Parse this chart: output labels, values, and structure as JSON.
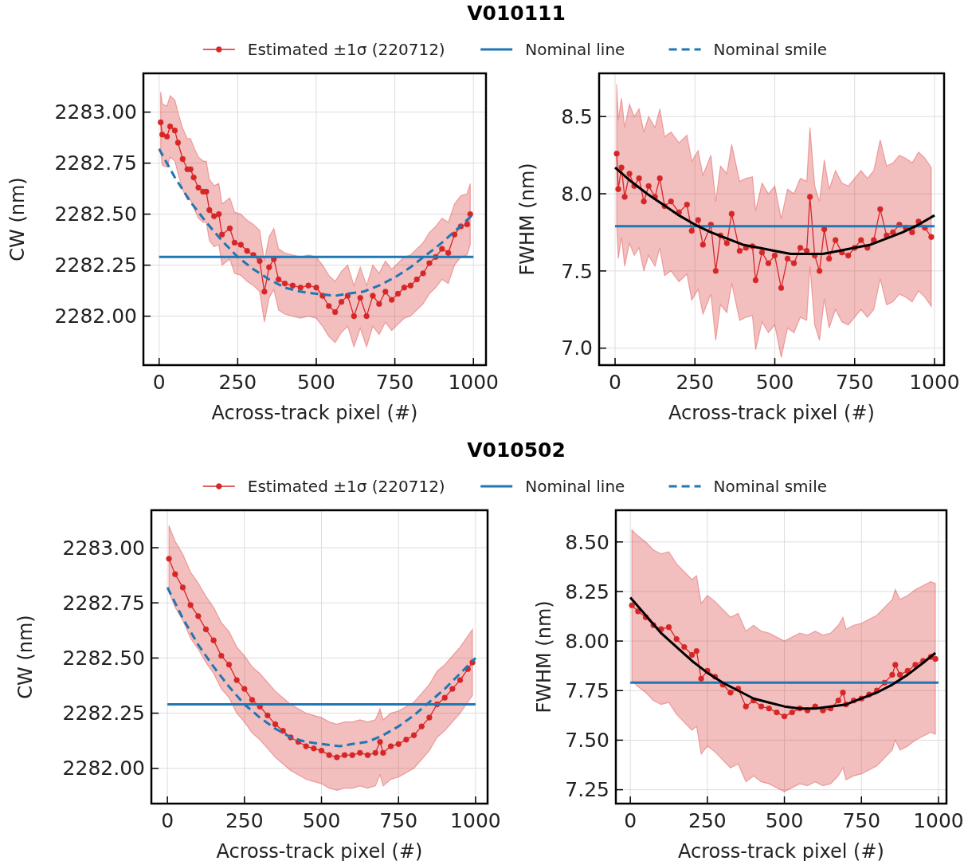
{
  "chart_data": [
    {
      "type": "line",
      "title": "V010111",
      "legend": "top",
      "grid": true,
      "xlabel": "Across-track pixel (#)",
      "ylabel": "CW (nm)",
      "xlim": [
        -50,
        1040
      ],
      "xticks": [
        0,
        250,
        500,
        750,
        1000
      ],
      "ylim": [
        2281.76,
        2283.19
      ],
      "yticks": [
        {
          "value": 2282,
          "label": "2282.00"
        },
        {
          "value": 2282.25,
          "label": "2282.25"
        },
        {
          "value": 2282.5,
          "label": "2282.50"
        },
        {
          "value": 2282.75,
          "label": "2282.75"
        },
        {
          "value": 2283,
          "label": "2283.00"
        }
      ],
      "series": [
        {
          "name": "Estimated ±1σ (220712)",
          "color": "#d62728",
          "marker": "circle",
          "x": [
            5,
            10,
            25,
            35,
            50,
            60,
            75,
            90,
            100,
            110,
            125,
            140,
            150,
            160,
            175,
            190,
            200,
            225,
            240,
            260,
            280,
            300,
            320,
            335,
            350,
            365,
            380,
            400,
            425,
            450,
            475,
            500,
            520,
            540,
            560,
            580,
            600,
            620,
            640,
            660,
            680,
            700,
            720,
            740,
            760,
            780,
            800,
            820,
            840,
            860,
            880,
            900,
            920,
            940,
            960,
            980,
            990
          ],
          "values": [
            2282.95,
            2282.89,
            2282.88,
            2282.93,
            2282.91,
            2282.85,
            2282.77,
            2282.72,
            2282.72,
            2282.68,
            2282.63,
            2282.61,
            2282.61,
            2282.52,
            2282.49,
            2282.5,
            2282.4,
            2282.43,
            2282.36,
            2282.35,
            2282.32,
            2282.3,
            2282.27,
            2282.12,
            2282.24,
            2282.28,
            2282.18,
            2282.16,
            2282.15,
            2282.14,
            2282.15,
            2282.14,
            2282.1,
            2282.05,
            2282.02,
            2282.07,
            2282.1,
            2282.0,
            2282.09,
            2282.0,
            2282.1,
            2282.06,
            2282.12,
            2282.08,
            2282.11,
            2282.14,
            2282.15,
            2282.18,
            2282.21,
            2282.26,
            2282.29,
            2282.33,
            2282.31,
            2282.4,
            2282.44,
            2282.45,
            2282.5
          ],
          "upper": [
            2283.1,
            2283.04,
            2283.03,
            2283.08,
            2283.06,
            2283.0,
            2282.92,
            2282.87,
            2282.87,
            2282.83,
            2282.78,
            2282.76,
            2282.76,
            2282.67,
            2282.64,
            2282.65,
            2282.55,
            2282.58,
            2282.51,
            2282.5,
            2282.47,
            2282.45,
            2282.42,
            2282.27,
            2282.39,
            2282.43,
            2282.33,
            2282.31,
            2282.3,
            2282.29,
            2282.3,
            2282.29,
            2282.25,
            2282.2,
            2282.17,
            2282.22,
            2282.25,
            2282.15,
            2282.24,
            2282.15,
            2282.25,
            2282.21,
            2282.27,
            2282.23,
            2282.26,
            2282.29,
            2282.3,
            2282.33,
            2282.36,
            2282.41,
            2282.44,
            2282.48,
            2282.46,
            2282.55,
            2282.59,
            2282.6,
            2282.65
          ],
          "lower": [
            2282.8,
            2282.74,
            2282.73,
            2282.78,
            2282.76,
            2282.7,
            2282.62,
            2282.57,
            2282.57,
            2282.53,
            2282.48,
            2282.46,
            2282.46,
            2282.37,
            2282.34,
            2282.35,
            2282.25,
            2282.28,
            2282.21,
            2282.2,
            2282.17,
            2282.15,
            2282.12,
            2281.97,
            2282.09,
            2282.13,
            2282.03,
            2282.01,
            2282.0,
            2281.99,
            2282.0,
            2281.99,
            2281.95,
            2281.9,
            2281.87,
            2281.92,
            2281.95,
            2281.85,
            2281.94,
            2281.85,
            2281.95,
            2281.91,
            2281.97,
            2281.93,
            2281.96,
            2281.99,
            2282.0,
            2282.03,
            2282.06,
            2282.11,
            2282.14,
            2282.18,
            2282.16,
            2282.25,
            2282.29,
            2282.3,
            2282.35
          ]
        },
        {
          "name": "Nominal line",
          "color": "#1f77b4",
          "x": [
            0,
            1000
          ],
          "values": [
            2282.29,
            2282.29
          ]
        },
        {
          "name": "Nominal smile",
          "color": "#1f77b4",
          "line_style": "dashed",
          "x": [
            0,
            50,
            100,
            150,
            200,
            250,
            300,
            350,
            400,
            450,
            500,
            560,
            600,
            650,
            700,
            750,
            800,
            850,
            900,
            950,
            1000
          ],
          "values": [
            2282.82,
            2282.68,
            2282.56,
            2282.46,
            2282.37,
            2282.29,
            2282.23,
            2282.18,
            2282.14,
            2282.12,
            2282.11,
            2282.1,
            2282.11,
            2282.12,
            2282.15,
            2282.19,
            2282.24,
            2282.3,
            2282.36,
            2282.43,
            2282.5
          ]
        }
      ]
    },
    {
      "type": "line",
      "grid": true,
      "xlabel": "Across-track pixel (#)",
      "ylabel": "FWHM (nm)",
      "xlim": [
        -50,
        1030
      ],
      "xticks": [
        0,
        250,
        500,
        750,
        1000
      ],
      "ylim": [
        6.89,
        8.78
      ],
      "yticks": [
        {
          "value": 7,
          "label": "7.0"
        },
        7.5,
        {
          "value": 8,
          "label": "8.0"
        },
        8.5
      ],
      "series": [
        {
          "color": "#d62728",
          "marker": "circle",
          "x": [
            5,
            10,
            20,
            30,
            45,
            60,
            75,
            90,
            105,
            125,
            140,
            155,
            175,
            200,
            225,
            240,
            260,
            275,
            300,
            315,
            330,
            350,
            365,
            390,
            410,
            430,
            440,
            460,
            480,
            500,
            520,
            540,
            560,
            580,
            600,
            610,
            625,
            640,
            655,
            670,
            690,
            710,
            730,
            750,
            770,
            790,
            810,
            830,
            850,
            870,
            890,
            910,
            930,
            950,
            970,
            990
          ],
          "values": [
            8.26,
            8.03,
            8.17,
            7.98,
            8.13,
            8.05,
            8.1,
            7.95,
            8.05,
            7.98,
            8.1,
            7.92,
            7.95,
            7.88,
            7.93,
            7.76,
            7.83,
            7.67,
            7.8,
            7.5,
            7.73,
            7.68,
            7.87,
            7.63,
            7.65,
            7.66,
            7.44,
            7.62,
            7.55,
            7.6,
            7.39,
            7.58,
            7.55,
            7.65,
            7.63,
            7.98,
            7.6,
            7.5,
            7.77,
            7.58,
            7.7,
            7.62,
            7.6,
            7.65,
            7.7,
            7.65,
            7.7,
            7.9,
            7.73,
            7.75,
            7.8,
            7.78,
            7.75,
            7.82,
            7.78,
            7.72
          ],
          "upper": [
            8.71,
            8.48,
            8.62,
            8.43,
            8.58,
            8.5,
            8.55,
            8.4,
            8.5,
            8.43,
            8.55,
            8.37,
            8.4,
            8.33,
            8.38,
            8.21,
            8.28,
            8.12,
            8.25,
            7.95,
            8.18,
            8.13,
            8.32,
            8.08,
            8.1,
            8.11,
            7.89,
            8.07,
            8.0,
            8.05,
            7.84,
            8.03,
            8.0,
            8.1,
            8.08,
            8.43,
            8.05,
            7.95,
            8.22,
            8.03,
            8.15,
            8.07,
            8.05,
            8.1,
            8.15,
            8.1,
            8.15,
            8.35,
            8.18,
            8.2,
            8.25,
            8.23,
            8.2,
            8.27,
            8.23,
            8.17
          ],
          "lower": [
            7.81,
            7.58,
            7.72,
            7.53,
            7.68,
            7.6,
            7.65,
            7.5,
            7.6,
            7.53,
            7.65,
            7.47,
            7.5,
            7.43,
            7.48,
            7.31,
            7.38,
            7.22,
            7.35,
            7.05,
            7.28,
            7.23,
            7.42,
            7.18,
            7.2,
            7.21,
            6.99,
            7.17,
            7.1,
            7.15,
            6.94,
            7.13,
            7.1,
            7.2,
            7.18,
            7.53,
            7.15,
            7.05,
            7.32,
            7.13,
            7.25,
            7.17,
            7.15,
            7.2,
            7.25,
            7.2,
            7.25,
            7.45,
            7.28,
            7.3,
            7.35,
            7.33,
            7.3,
            7.37,
            7.33,
            7.27
          ]
        },
        {
          "color": "#1f77b4",
          "x": [
            0,
            1000
          ],
          "values": [
            7.79,
            7.79
          ]
        },
        {
          "color": "#000000",
          "x": [
            0,
            50,
            100,
            150,
            200,
            250,
            300,
            350,
            400,
            450,
            500,
            550,
            600,
            650,
            700,
            750,
            800,
            850,
            900,
            950,
            1000
          ],
          "values": [
            8.17,
            8.08,
            8.0,
            7.93,
            7.86,
            7.8,
            7.75,
            7.71,
            7.67,
            7.65,
            7.63,
            7.61,
            7.61,
            7.61,
            7.63,
            7.65,
            7.67,
            7.71,
            7.75,
            7.8,
            7.86
          ]
        }
      ]
    },
    {
      "type": "line",
      "title": "V010502",
      "legend": "top",
      "grid": true,
      "xlabel": "Across-track pixel (#)",
      "ylabel": "CW (nm)",
      "xlim": [
        -52,
        1039
      ],
      "xticks": [
        0,
        250,
        500,
        750,
        1000
      ],
      "ylim": [
        2281.84,
        2283.17
      ],
      "yticks": [
        {
          "value": 2282,
          "label": "2282.00"
        },
        {
          "value": 2282.25,
          "label": "2282.25"
        },
        {
          "value": 2282.5,
          "label": "2282.50"
        },
        {
          "value": 2282.75,
          "label": "2282.75"
        },
        {
          "value": 2283,
          "label": "2283.00"
        }
      ],
      "series": [
        {
          "name": "Estimated ±1σ (220712)",
          "color": "#d62728",
          "marker": "circle",
          "x": [
            5,
            25,
            50,
            75,
            100,
            125,
            150,
            175,
            200,
            225,
            250,
            275,
            300,
            325,
            350,
            375,
            400,
            425,
            450,
            475,
            500,
            525,
            550,
            575,
            600,
            625,
            650,
            675,
            690,
            700,
            725,
            750,
            775,
            800,
            825,
            850,
            875,
            900,
            925,
            950,
            975,
            990
          ],
          "values": [
            2282.95,
            2282.88,
            2282.82,
            2282.74,
            2282.69,
            2282.63,
            2282.58,
            2282.51,
            2282.47,
            2282.4,
            2282.36,
            2282.31,
            2282.28,
            2282.24,
            2282.2,
            2282.17,
            2282.14,
            2282.12,
            2282.1,
            2282.09,
            2282.08,
            2282.06,
            2282.05,
            2282.06,
            2282.06,
            2282.07,
            2282.06,
            2282.07,
            2282.12,
            2282.07,
            2282.1,
            2282.11,
            2282.13,
            2282.15,
            2282.19,
            2282.23,
            2282.29,
            2282.32,
            2282.36,
            2282.4,
            2282.45,
            2282.48
          ],
          "upper": [
            2283.1,
            2283.03,
            2282.97,
            2282.89,
            2282.84,
            2282.78,
            2282.73,
            2282.66,
            2282.62,
            2282.55,
            2282.51,
            2282.46,
            2282.43,
            2282.39,
            2282.35,
            2282.32,
            2282.29,
            2282.27,
            2282.25,
            2282.24,
            2282.23,
            2282.21,
            2282.2,
            2282.21,
            2282.21,
            2282.22,
            2282.21,
            2282.22,
            2282.27,
            2282.22,
            2282.25,
            2282.26,
            2282.28,
            2282.3,
            2282.34,
            2282.38,
            2282.44,
            2282.47,
            2282.51,
            2282.55,
            2282.6,
            2282.63
          ],
          "lower": [
            2282.8,
            2282.73,
            2282.67,
            2282.59,
            2282.54,
            2282.48,
            2282.43,
            2282.36,
            2282.32,
            2282.25,
            2282.21,
            2282.16,
            2282.13,
            2282.09,
            2282.05,
            2282.02,
            2281.99,
            2281.97,
            2281.95,
            2281.94,
            2281.93,
            2281.91,
            2281.9,
            2281.91,
            2281.91,
            2281.92,
            2281.91,
            2281.92,
            2281.97,
            2281.92,
            2281.95,
            2281.96,
            2281.98,
            2282.0,
            2282.04,
            2282.08,
            2282.14,
            2282.17,
            2282.21,
            2282.25,
            2282.3,
            2282.33
          ]
        },
        {
          "name": "Nominal line",
          "color": "#1f77b4",
          "x": [
            0,
            1000
          ],
          "values": [
            2282.29,
            2282.29
          ]
        },
        {
          "name": "Nominal smile",
          "color": "#1f77b4",
          "line_style": "dashed",
          "x": [
            0,
            50,
            100,
            150,
            200,
            250,
            300,
            350,
            400,
            450,
            500,
            560,
            600,
            650,
            700,
            750,
            800,
            850,
            900,
            950,
            1000
          ],
          "values": [
            2282.82,
            2282.68,
            2282.56,
            2282.46,
            2282.37,
            2282.29,
            2282.23,
            2282.18,
            2282.14,
            2282.12,
            2282.11,
            2282.1,
            2282.11,
            2282.12,
            2282.15,
            2282.19,
            2282.24,
            2282.3,
            2282.36,
            2282.43,
            2282.5
          ]
        }
      ]
    },
    {
      "type": "line",
      "grid": true,
      "xlabel": "Across-track pixel (#)",
      "ylabel": "FWHM (nm)",
      "xlim": [
        -47,
        1026
      ],
      "xticks": [
        0,
        250,
        500,
        750,
        1000
      ],
      "ylim": [
        7.18,
        8.66
      ],
      "yticks": [
        {
          "value": 7.25,
          "label": "7.25"
        },
        {
          "value": 7.5,
          "label": "7.50"
        },
        {
          "value": 7.75,
          "label": "7.75"
        },
        {
          "value": 8,
          "label": "8.00"
        },
        {
          "value": 8.25,
          "label": "8.25"
        },
        {
          "value": 8.5,
          "label": "8.50"
        }
      ],
      "series": [
        {
          "color": "#d62728",
          "marker": "circle",
          "x": [
            5,
            25,
            50,
            75,
            100,
            125,
            150,
            175,
            200,
            215,
            230,
            250,
            275,
            300,
            325,
            350,
            375,
            400,
            425,
            450,
            475,
            500,
            525,
            550,
            575,
            600,
            625,
            650,
            675,
            690,
            700,
            725,
            750,
            775,
            800,
            825,
            850,
            860,
            875,
            900,
            925,
            950,
            975,
            990
          ],
          "values": [
            8.18,
            8.15,
            8.12,
            8.08,
            8.06,
            8.07,
            8.01,
            7.97,
            7.93,
            7.95,
            7.81,
            7.85,
            7.82,
            7.78,
            7.74,
            7.76,
            7.67,
            7.7,
            7.67,
            7.66,
            7.64,
            7.62,
            7.64,
            7.66,
            7.65,
            7.67,
            7.65,
            7.66,
            7.7,
            7.74,
            7.68,
            7.7,
            7.71,
            7.73,
            7.75,
            7.79,
            7.83,
            7.88,
            7.83,
            7.85,
            7.88,
            7.9,
            7.92,
            7.91
          ],
          "upper": [
            8.56,
            8.53,
            8.5,
            8.46,
            8.44,
            8.45,
            8.39,
            8.35,
            8.31,
            8.33,
            8.19,
            8.23,
            8.2,
            8.16,
            8.12,
            8.14,
            8.05,
            8.08,
            8.05,
            8.04,
            8.02,
            8.0,
            8.02,
            8.04,
            8.03,
            8.05,
            8.03,
            8.04,
            8.08,
            8.12,
            8.06,
            8.08,
            8.09,
            8.11,
            8.13,
            8.17,
            8.21,
            8.26,
            8.21,
            8.23,
            8.26,
            8.28,
            8.3,
            8.29
          ],
          "lower": [
            7.8,
            7.77,
            7.74,
            7.7,
            7.68,
            7.69,
            7.63,
            7.59,
            7.55,
            7.57,
            7.43,
            7.47,
            7.44,
            7.4,
            7.36,
            7.38,
            7.29,
            7.32,
            7.29,
            7.28,
            7.26,
            7.24,
            7.26,
            7.28,
            7.27,
            7.29,
            7.27,
            7.28,
            7.32,
            7.36,
            7.3,
            7.32,
            7.33,
            7.35,
            7.37,
            7.41,
            7.45,
            7.5,
            7.45,
            7.47,
            7.5,
            7.52,
            7.54,
            7.53
          ]
        },
        {
          "color": "#1f77b4",
          "x": [
            0,
            1000
          ],
          "values": [
            7.79,
            7.79
          ]
        },
        {
          "color": "#000000",
          "x": [
            0,
            50,
            100,
            150,
            200,
            250,
            300,
            350,
            400,
            450,
            500,
            550,
            580,
            600,
            650,
            700,
            750,
            800,
            850,
            900,
            950,
            990
          ],
          "values": [
            8.22,
            8.13,
            8.04,
            7.97,
            7.9,
            7.84,
            7.79,
            7.75,
            7.71,
            7.69,
            7.67,
            7.66,
            7.66,
            7.66,
            7.67,
            7.68,
            7.71,
            7.74,
            7.78,
            7.83,
            7.89,
            7.94
          ]
        }
      ]
    }
  ]
}
